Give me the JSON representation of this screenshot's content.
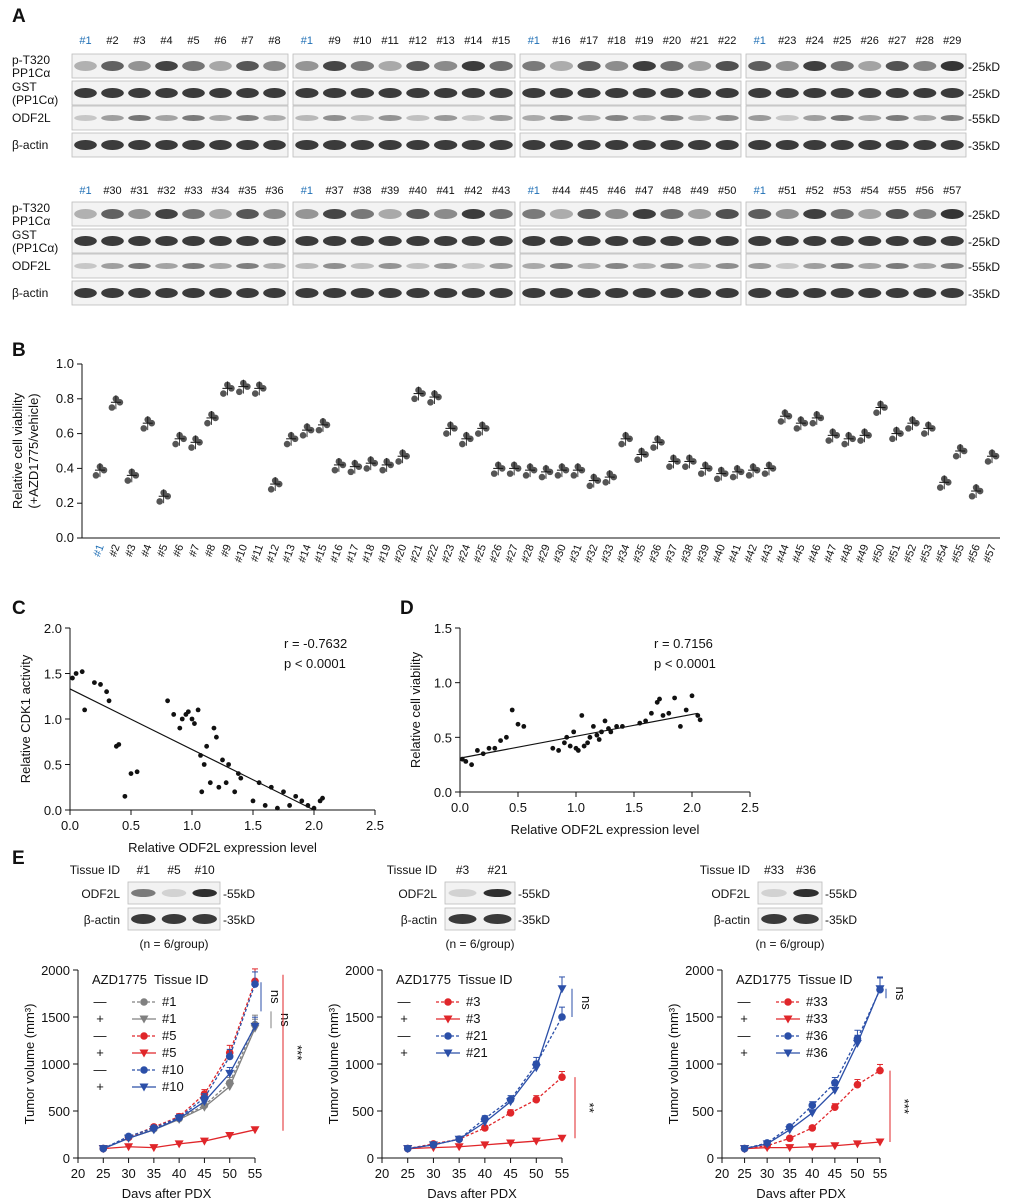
{
  "panels": {
    "A": "A",
    "B": "B",
    "C": "C",
    "D": "D",
    "E": "E"
  },
  "blots": {
    "rows": [
      "p-T320 PP1Cα",
      "GST (PP1Cα)",
      "ODF2L",
      "β-actin"
    ],
    "row_labels": [
      [
        "p-T320",
        "PP1Cα"
      ],
      [
        "GST",
        "(PP1Cα)"
      ],
      [
        "ODF2L"
      ],
      [
        "β-actin"
      ]
    ],
    "sizes": [
      "25kD",
      "25kD",
      "55kD",
      "35kD"
    ],
    "groups_top": [
      [
        "#1",
        "#2",
        "#3",
        "#4",
        "#5",
        "#6",
        "#7",
        "#8"
      ],
      [
        "#1",
        "#9",
        "#10",
        "#11",
        "#12",
        "#13",
        "#14",
        "#15"
      ],
      [
        "#1",
        "#16",
        "#17",
        "#18",
        "#19",
        "#20",
        "#21",
        "#22"
      ],
      [
        "#1",
        "#23",
        "#24",
        "#25",
        "#26",
        "#27",
        "#28",
        "#29"
      ]
    ],
    "groups_bottom": [
      [
        "#1",
        "#30",
        "#31",
        "#32",
        "#33",
        "#34",
        "#35",
        "#36"
      ],
      [
        "#1",
        "#37",
        "#38",
        "#39",
        "#40",
        "#41",
        "#42",
        "#43"
      ],
      [
        "#1",
        "#44",
        "#45",
        "#46",
        "#47",
        "#48",
        "#49",
        "#50"
      ],
      [
        "#1",
        "#51",
        "#52",
        "#53",
        "#54",
        "#55",
        "#56",
        "#57"
      ]
    ]
  },
  "chart_data": [
    {
      "panel": "B",
      "type": "scatter",
      "ylabel": "Relative cell viability (+AZD1775/vehicle)",
      "ylim": [
        0,
        1.0
      ],
      "yticks": [
        "0.0",
        "0.2",
        "0.4",
        "0.6",
        "0.8",
        "1.0"
      ],
      "categories": [
        "#1",
        "#2",
        "#3",
        "#4",
        "#5",
        "#6",
        "#7",
        "#8",
        "#9",
        "#10",
        "#11",
        "#12",
        "#13",
        "#14",
        "#15",
        "#16",
        "#17",
        "#18",
        "#19",
        "#20",
        "#21",
        "#22",
        "#23",
        "#24",
        "#25",
        "#26",
        "#27",
        "#28",
        "#29",
        "#30",
        "#31",
        "#32",
        "#33",
        "#34",
        "#35",
        "#36",
        "#37",
        "#38",
        "#39",
        "#40",
        "#41",
        "#42",
        "#43",
        "#44",
        "#45",
        "#46",
        "#47",
        "#48",
        "#49",
        "#50",
        "#51",
        "#52",
        "#53",
        "#54",
        "#55",
        "#56",
        "#57"
      ],
      "values": [
        0.39,
        0.78,
        0.36,
        0.66,
        0.24,
        0.57,
        0.55,
        0.69,
        0.86,
        0.87,
        0.86,
        0.31,
        0.57,
        0.62,
        0.65,
        0.42,
        0.41,
        0.43,
        0.42,
        0.47,
        0.83,
        0.81,
        0.63,
        0.57,
        0.63,
        0.4,
        0.4,
        0.39,
        0.38,
        0.39,
        0.39,
        0.33,
        0.35,
        0.57,
        0.48,
        0.55,
        0.44,
        0.44,
        0.4,
        0.37,
        0.38,
        0.39,
        0.4,
        0.7,
        0.66,
        0.69,
        0.59,
        0.57,
        0.59,
        0.75,
        0.6,
        0.66,
        0.63,
        0.32,
        0.5,
        0.27,
        0.47
      ]
    },
    {
      "panel": "C",
      "type": "scatter",
      "xlabel": "Relative ODF2L expression level",
      "ylabel": "Relative CDK1 activity",
      "xlim": [
        0,
        2.5
      ],
      "ylim": [
        0,
        2.0
      ],
      "xticks": [
        "0.0",
        "0.5",
        "1.0",
        "1.5",
        "2.0",
        "2.5"
      ],
      "yticks": [
        "0.0",
        "0.5",
        "1.0",
        "1.5",
        "2.0"
      ],
      "annotation": [
        "r = -0.7632",
        "p < 0.0001"
      ],
      "fit": [
        [
          0,
          1.33
        ],
        [
          2.0,
          0.0
        ]
      ],
      "points": [
        [
          0.02,
          1.45
        ],
        [
          0.05,
          1.5
        ],
        [
          0.1,
          1.52
        ],
        [
          0.12,
          1.1
        ],
        [
          0.2,
          1.4
        ],
        [
          0.25,
          1.38
        ],
        [
          0.3,
          1.3
        ],
        [
          0.32,
          1.2
        ],
        [
          0.38,
          0.7
        ],
        [
          0.4,
          0.72
        ],
        [
          0.45,
          0.15
        ],
        [
          0.5,
          0.4
        ],
        [
          0.55,
          0.42
        ],
        [
          0.8,
          1.2
        ],
        [
          0.85,
          1.05
        ],
        [
          0.9,
          0.9
        ],
        [
          0.92,
          1.0
        ],
        [
          0.95,
          1.05
        ],
        [
          0.97,
          1.08
        ],
        [
          1.0,
          1.0
        ],
        [
          1.02,
          0.95
        ],
        [
          1.05,
          1.1
        ],
        [
          1.07,
          0.6
        ],
        [
          1.08,
          0.2
        ],
        [
          1.1,
          0.5
        ],
        [
          1.12,
          0.7
        ],
        [
          1.15,
          0.3
        ],
        [
          1.18,
          0.9
        ],
        [
          1.2,
          0.8
        ],
        [
          1.22,
          0.25
        ],
        [
          1.25,
          0.55
        ],
        [
          1.28,
          0.3
        ],
        [
          1.3,
          0.5
        ],
        [
          1.35,
          0.2
        ],
        [
          1.38,
          0.4
        ],
        [
          1.4,
          0.35
        ],
        [
          1.5,
          0.1
        ],
        [
          1.55,
          0.3
        ],
        [
          1.6,
          0.05
        ],
        [
          1.65,
          0.25
        ],
        [
          1.7,
          0.02
        ],
        [
          1.75,
          0.2
        ],
        [
          1.8,
          0.05
        ],
        [
          1.85,
          0.15
        ],
        [
          1.9,
          0.1
        ],
        [
          1.95,
          0.05
        ],
        [
          2.0,
          0.02
        ],
        [
          2.05,
          0.1
        ],
        [
          2.07,
          0.13
        ]
      ]
    },
    {
      "panel": "D",
      "type": "scatter",
      "xlabel": "Relative ODF2L expression level",
      "ylabel": "Relative cell viability",
      "xlim": [
        0,
        2.5
      ],
      "ylim": [
        0,
        1.5
      ],
      "xticks": [
        "0.0",
        "0.5",
        "1.0",
        "1.5",
        "2.0",
        "2.5"
      ],
      "yticks": [
        "0.0",
        "0.5",
        "1.0",
        "1.5"
      ],
      "annotation": [
        "r = 0.7156",
        "p < 0.0001"
      ],
      "fit": [
        [
          0,
          0.31
        ],
        [
          2.05,
          0.72
        ]
      ],
      "points": [
        [
          0.02,
          0.3
        ],
        [
          0.05,
          0.28
        ],
        [
          0.1,
          0.25
        ],
        [
          0.15,
          0.38
        ],
        [
          0.2,
          0.35
        ],
        [
          0.25,
          0.4
        ],
        [
          0.3,
          0.4
        ],
        [
          0.35,
          0.47
        ],
        [
          0.4,
          0.5
        ],
        [
          0.45,
          0.75
        ],
        [
          0.5,
          0.62
        ],
        [
          0.55,
          0.6
        ],
        [
          0.8,
          0.4
        ],
        [
          0.85,
          0.38
        ],
        [
          0.9,
          0.45
        ],
        [
          0.92,
          0.5
        ],
        [
          0.95,
          0.42
        ],
        [
          0.98,
          0.55
        ],
        [
          1.0,
          0.4
        ],
        [
          1.02,
          0.38
        ],
        [
          1.05,
          0.7
        ],
        [
          1.07,
          0.42
        ],
        [
          1.1,
          0.45
        ],
        [
          1.12,
          0.5
        ],
        [
          1.15,
          0.6
        ],
        [
          1.18,
          0.52
        ],
        [
          1.2,
          0.48
        ],
        [
          1.22,
          0.55
        ],
        [
          1.25,
          0.65
        ],
        [
          1.28,
          0.58
        ],
        [
          1.3,
          0.55
        ],
        [
          1.35,
          0.6
        ],
        [
          1.4,
          0.6
        ],
        [
          1.55,
          0.63
        ],
        [
          1.6,
          0.65
        ],
        [
          1.65,
          0.72
        ],
        [
          1.7,
          0.82
        ],
        [
          1.72,
          0.85
        ],
        [
          1.75,
          0.7
        ],
        [
          1.8,
          0.72
        ],
        [
          1.85,
          0.86
        ],
        [
          1.9,
          0.6
        ],
        [
          1.95,
          0.75
        ],
        [
          2.0,
          0.88
        ],
        [
          2.05,
          0.7
        ],
        [
          2.07,
          0.66
        ]
      ]
    },
    {
      "panel": "E1",
      "type": "line",
      "xlabel": "Days after PDX",
      "ylabel": "Tumor volume (mm³)",
      "xlim": [
        20,
        55
      ],
      "ylim": [
        0,
        2000
      ],
      "xticks": [
        "20",
        "25",
        "30",
        "35",
        "40",
        "45",
        "50",
        "55"
      ],
      "yticks": [
        "0",
        "500",
        "1000",
        "1500",
        "2000"
      ],
      "x": [
        25,
        30,
        35,
        40,
        45,
        50,
        55
      ],
      "legend_header": [
        "AZD1775",
        "Tissue ID"
      ],
      "series": [
        {
          "name": "#1",
          "drug": "—",
          "color": "#808080",
          "marker": "circle",
          "dash": true,
          "values": [
            100,
            220,
            310,
            420,
            560,
            800,
            1420
          ]
        },
        {
          "name": "#1",
          "drug": "+",
          "color": "#808080",
          "marker": "triangle",
          "dash": false,
          "values": [
            100,
            210,
            300,
            410,
            540,
            760,
            1380
          ]
        },
        {
          "name": "#5",
          "drug": "—",
          "color": "#e0262a",
          "marker": "circle",
          "dash": true,
          "values": [
            100,
            220,
            330,
            440,
            680,
            1120,
            1880
          ]
        },
        {
          "name": "#5",
          "drug": "+",
          "color": "#e0262a",
          "marker": "triangle",
          "dash": false,
          "values": [
            100,
            120,
            110,
            150,
            180,
            240,
            300
          ]
        },
        {
          "name": "#10",
          "drug": "—",
          "color": "#2b4fa8",
          "marker": "circle",
          "dash": true,
          "values": [
            100,
            230,
            320,
            430,
            640,
            1080,
            1850
          ]
        },
        {
          "name": "#10",
          "drug": "+",
          "color": "#2b4fa8",
          "marker": "triangle",
          "dash": false,
          "values": [
            100,
            210,
            300,
            420,
            600,
            900,
            1400
          ]
        }
      ],
      "sig": [
        "ns",
        "ns",
        "***"
      ],
      "blot_ids": [
        "#1",
        "#5",
        "#10"
      ],
      "blot_rows": [
        "ODF2L",
        "β-actin"
      ],
      "blot_sizes": [
        "55kD",
        "35kD"
      ],
      "tissue_label": "Tissue ID",
      "n_label": "(n = 6/group)"
    },
    {
      "panel": "E2",
      "type": "line",
      "xlabel": "Days after PDX",
      "ylabel": "Tumor volume (mm³)",
      "xlim": [
        20,
        55
      ],
      "ylim": [
        0,
        2000
      ],
      "xticks": [
        "20",
        "25",
        "30",
        "35",
        "40",
        "45",
        "50",
        "55"
      ],
      "yticks": [
        "0",
        "500",
        "1000",
        "1500",
        "2000"
      ],
      "x": [
        25,
        30,
        35,
        40,
        45,
        50,
        55
      ],
      "legend_header": [
        "AZD1775",
        "Tissue ID"
      ],
      "series": [
        {
          "name": "#3",
          "drug": "—",
          "color": "#e0262a",
          "marker": "circle",
          "dash": true,
          "values": [
            100,
            150,
            200,
            320,
            480,
            620,
            860
          ]
        },
        {
          "name": "#3",
          "drug": "+",
          "color": "#e0262a",
          "marker": "triangle",
          "dash": false,
          "values": [
            100,
            110,
            120,
            140,
            160,
            180,
            210
          ]
        },
        {
          "name": "#21",
          "drug": "—",
          "color": "#2b4fa8",
          "marker": "circle",
          "dash": true,
          "values": [
            100,
            140,
            200,
            420,
            620,
            1000,
            1500
          ]
        },
        {
          "name": "#21",
          "drug": "+",
          "color": "#2b4fa8",
          "marker": "triangle",
          "dash": false,
          "values": [
            100,
            140,
            200,
            380,
            600,
            960,
            1800
          ]
        }
      ],
      "sig": [
        "ns",
        "**"
      ],
      "blot_ids": [
        "#3",
        "#21"
      ],
      "blot_rows": [
        "ODF2L",
        "β-actin"
      ],
      "blot_sizes": [
        "55kD",
        "35kD"
      ],
      "tissue_label": "Tissue ID",
      "n_label": "(n = 6/group)"
    },
    {
      "panel": "E3",
      "type": "line",
      "xlabel": "Days after PDX",
      "ylabel": "Tumor volume (mm³)",
      "xlim": [
        20,
        55
      ],
      "ylim": [
        0,
        2000
      ],
      "xticks": [
        "20",
        "25",
        "30",
        "35",
        "40",
        "45",
        "50",
        "55"
      ],
      "yticks": [
        "0",
        "500",
        "1000",
        "1500",
        "2000"
      ],
      "x": [
        25,
        30,
        35,
        40,
        45,
        50,
        55
      ],
      "legend_header": [
        "AZD1775",
        "Tissue ID"
      ],
      "series": [
        {
          "name": "#33",
          "drug": "—",
          "color": "#e0262a",
          "marker": "circle",
          "dash": true,
          "values": [
            100,
            130,
            210,
            320,
            540,
            780,
            930
          ]
        },
        {
          "name": "#33",
          "drug": "+",
          "color": "#e0262a",
          "marker": "triangle",
          "dash": false,
          "values": [
            100,
            110,
            110,
            120,
            130,
            150,
            170
          ]
        },
        {
          "name": "#36",
          "drug": "—",
          "color": "#2b4fa8",
          "marker": "circle",
          "dash": true,
          "values": [
            100,
            160,
            330,
            560,
            800,
            1270,
            1790
          ]
        },
        {
          "name": "#36",
          "drug": "+",
          "color": "#2b4fa8",
          "marker": "triangle",
          "dash": false,
          "values": [
            100,
            150,
            300,
            480,
            720,
            1220,
            1800
          ]
        }
      ],
      "sig": [
        "ns",
        "***"
      ],
      "blot_ids": [
        "#33",
        "#36"
      ],
      "blot_rows": [
        "ODF2L",
        "β-actin"
      ],
      "blot_sizes": [
        "55kD",
        "35kD"
      ],
      "tissue_label": "Tissue ID",
      "n_label": "(n = 6/group)"
    }
  ]
}
